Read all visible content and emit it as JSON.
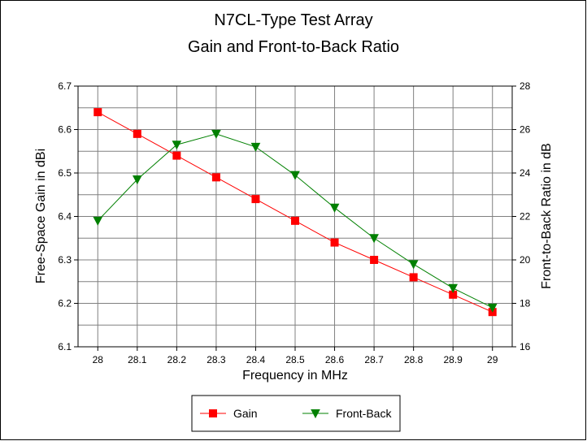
{
  "chart_data": {
    "type": "line",
    "title": "N7CL-Type Test Array",
    "subtitle": "Gain and Front-to-Back Ratio",
    "xlabel": "Frequency in MHz",
    "ylabel_left": "Free-Space Gain in dBi",
    "ylabel_right": "Front-to-Back Ratio in dB",
    "x": [
      28,
      28.1,
      28.2,
      28.3,
      28.4,
      28.5,
      28.6,
      28.7,
      28.8,
      28.9,
      29
    ],
    "x_tick_labels": [
      "28",
      "28.1",
      "28.2",
      "28.3",
      "28.4",
      "28.5",
      "28.6",
      "28.7",
      "28.8",
      "28.9",
      "29"
    ],
    "ylim_left": [
      6.1,
      6.7
    ],
    "ylim_right": [
      16,
      28
    ],
    "left_tick_labels": [
      "6.1",
      "6.2",
      "6.3",
      "6.4",
      "6.5",
      "6.6",
      "6.7"
    ],
    "right_tick_labels": [
      "16",
      "18",
      "20",
      "22",
      "24",
      "26",
      "28"
    ],
    "grid": true,
    "legend_position": "bottom",
    "series": [
      {
        "name": "Gain",
        "axis": "left",
        "color": "#ff0000",
        "marker": "square",
        "values": [
          6.64,
          6.59,
          6.54,
          6.49,
          6.44,
          6.39,
          6.34,
          6.3,
          6.26,
          6.22,
          6.18
        ]
      },
      {
        "name": "Front-Back",
        "axis": "right",
        "color": "#008000",
        "marker": "triangle-down",
        "values": [
          21.8,
          23.7,
          25.3,
          25.8,
          25.2,
          23.9,
          22.4,
          21.0,
          19.8,
          18.7,
          17.8
        ]
      }
    ]
  }
}
